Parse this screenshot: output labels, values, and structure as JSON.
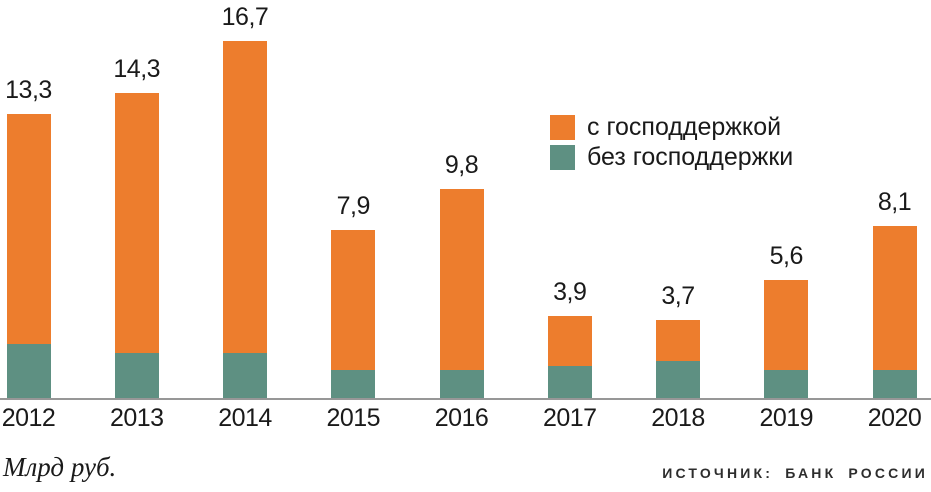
{
  "chart_data": {
    "type": "bar",
    "subtype": "stacked-bar",
    "title": "",
    "categories": [
      "2012",
      "2013",
      "2014",
      "2015",
      "2016",
      "2017",
      "2018",
      "2019",
      "2020"
    ],
    "totals": [
      13.3,
      14.3,
      16.7,
      7.9,
      9.8,
      3.9,
      3.7,
      5.6,
      8.1
    ],
    "total_labels": [
      "13,3",
      "14,3",
      "16,7",
      "7,9",
      "9,8",
      "3,9",
      "3,7",
      "5,6",
      "8,1"
    ],
    "series": [
      {
        "name": "с господдержкой",
        "color": "#ED7D2D",
        "position": "top",
        "values": [
          10.7,
          12.1,
          14.5,
          6.5,
          8.4,
          2.3,
          1.9,
          4.2,
          6.7
        ]
      },
      {
        "name": "без господдержки",
        "color": "#5E9082",
        "position": "bottom",
        "values": [
          2.6,
          2.2,
          2.2,
          1.4,
          1.4,
          1.6,
          1.8,
          1.4,
          1.4
        ],
        "estimated_from_pixels": true
      }
    ],
    "ylabel": "Млрд руб.",
    "xlabel": "",
    "ylim": [
      0,
      17
    ],
    "grid": false,
    "legend_position": "upper-center-right",
    "axis_line_color": "#979797"
  },
  "footer": {
    "unit_label": "Млрд руб.",
    "source_label": "ИСТОЧНИК: БАНК РОССИИ"
  }
}
